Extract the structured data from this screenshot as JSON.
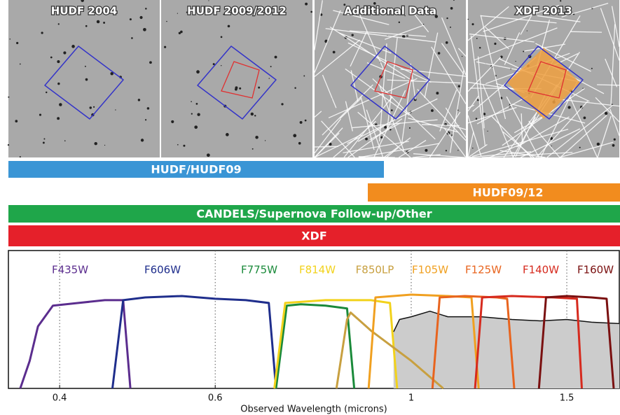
{
  "panels": [
    "HUDF 2004",
    "HUDF 2009/2012",
    "Additional Data",
    "XDF 2013"
  ],
  "bars": [
    "HUDF/HUDF09",
    "HUDF09/12",
    "CANDELS/Supernova Follow-up/Other",
    "XDF"
  ],
  "chart_data": {
    "type": "line",
    "xlabel": "Observed Wavelength (microns)",
    "log_x": true,
    "xlim": [
      0.35,
      1.72
    ],
    "xticks": [
      0.4,
      0.6,
      1,
      1.5
    ],
    "ylim": [
      0,
      1
    ],
    "grid": true,
    "series": [
      {
        "color": "#111111",
        "fill": "#cccccc",
        "x": [
          0.955,
          0.97,
          1.0,
          1.05,
          1.1,
          1.2,
          1.3,
          1.4,
          1.5,
          1.6,
          1.72
        ],
        "values": [
          0.41,
          0.5,
          0.52,
          0.56,
          0.52,
          0.52,
          0.5,
          0.49,
          0.5,
          0.48,
          0.47
        ]
      },
      {
        "name": "F435W",
        "color": "#5b2d8e",
        "x": [
          0.361,
          0.37,
          0.378,
          0.393,
          0.42,
          0.45,
          0.472,
          0.481
        ],
        "values": [
          0,
          0.2,
          0.45,
          0.6,
          0.62,
          0.64,
          0.64,
          0
        ]
      },
      {
        "name": "F606W",
        "color": "#1f2e8c",
        "x": [
          0.459,
          0.472,
          0.5,
          0.55,
          0.6,
          0.65,
          0.69,
          0.703
        ],
        "values": [
          0,
          0.64,
          0.66,
          0.67,
          0.65,
          0.64,
          0.62,
          0
        ]
      },
      {
        "name": "F775W",
        "color": "#1a8a3a",
        "x": [
          0.703,
          0.723,
          0.75,
          0.8,
          0.846,
          0.862
        ],
        "values": [
          0,
          0.6,
          0.61,
          0.6,
          0.58,
          0
        ]
      },
      {
        "name": "F814W",
        "color": "#f2d21b",
        "x": [
          0.7,
          0.72,
          0.8,
          0.9,
          0.946,
          0.964
        ],
        "values": [
          0,
          0.62,
          0.64,
          0.64,
          0.62,
          0
        ]
      },
      {
        "name": "F850LP",
        "color": "#c8a040",
        "x": [
          0.823,
          0.846,
          0.854,
          0.9,
          1.0,
          1.087
        ],
        "values": [
          0,
          0.5,
          0.55,
          0.42,
          0.2,
          0
        ]
      },
      {
        "name": "F105W",
        "color": "#f0a020",
        "x": [
          0.895,
          0.911,
          1.0,
          1.1,
          1.17,
          1.192
        ],
        "values": [
          0,
          0.66,
          0.68,
          0.67,
          0.66,
          0
        ]
      },
      {
        "name": "F125W",
        "color": "#e8641e",
        "x": [
          1.057,
          1.077,
          1.15,
          1.25,
          1.284,
          1.308
        ],
        "values": [
          0,
          0.66,
          0.67,
          0.66,
          0.65,
          0
        ]
      },
      {
        "name": "F140W",
        "color": "#d62a1e",
        "x": [
          1.181,
          1.203,
          1.3,
          1.45,
          1.54,
          1.56
        ],
        "values": [
          0,
          0.66,
          0.67,
          0.66,
          0.65,
          0
        ]
      },
      {
        "name": "F160W",
        "color": "#7a1010",
        "x": [
          1.395,
          1.421,
          1.5,
          1.6,
          1.664,
          1.695
        ],
        "values": [
          0,
          0.66,
          0.67,
          0.66,
          0.65,
          0
        ]
      }
    ]
  }
}
